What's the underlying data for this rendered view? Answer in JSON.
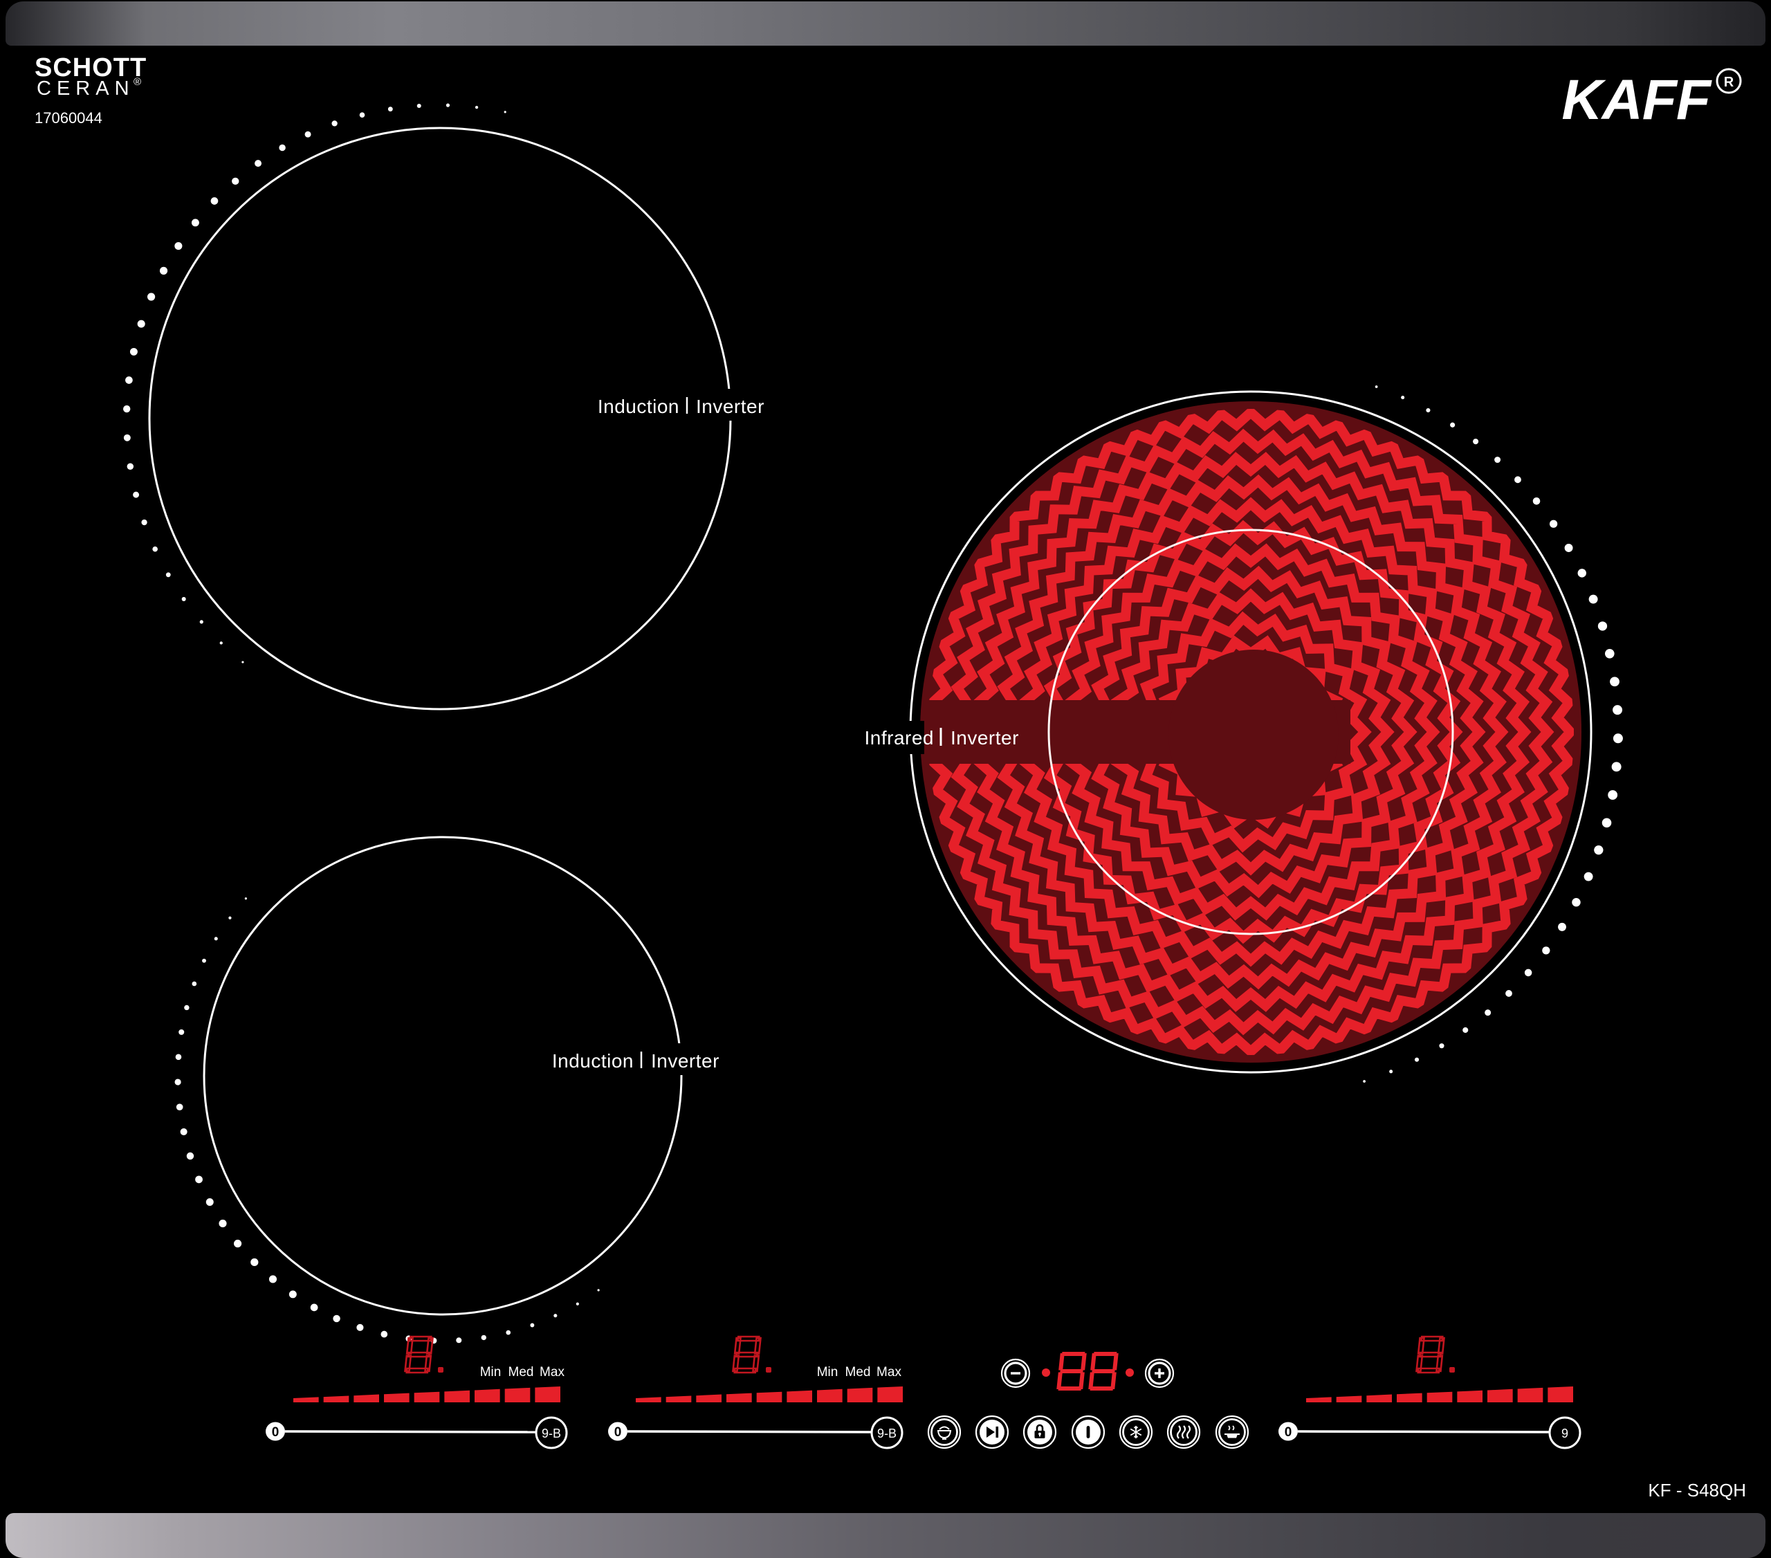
{
  "header": {
    "glass_brand_line1": "SCHOTT",
    "glass_brand_line2": "CERAN",
    "glass_brand_reg": "®",
    "serial_number": "17060044",
    "brand": "KAFF",
    "brand_reg": "R",
    "model": "KF - S48QH"
  },
  "zones": {
    "divider": "|",
    "top_left": {
      "type_label": "Induction",
      "tech_label": "Inverter"
    },
    "bottom_left": {
      "type_label": "Induction",
      "tech_label": "Inverter"
    },
    "right": {
      "type_label": "Infrared",
      "tech_label": "Inverter"
    }
  },
  "controls": {
    "power_scale": {
      "min": "Min",
      "med": "Med",
      "max": "Max"
    },
    "slider": {
      "start": "0",
      "end_booster": "9-B",
      "end_plain": "9"
    },
    "displays": {
      "zone_power": "8.",
      "timer": "88"
    },
    "minus_label": "−",
    "plus_label": "+",
    "mode_icons": [
      "rice-cooking-icon",
      "pause-icon",
      "child-lock-icon",
      "power-icon",
      "defrost-icon",
      "keep-warm-icon",
      "warm-pan-icon"
    ]
  },
  "colors": {
    "accent_red": "#e62029",
    "zone_dark_red": "#5e0d12",
    "display_dim_red": "#c2161f",
    "display_lit_red": "#e8232c",
    "dot_white": "#ffffff"
  }
}
